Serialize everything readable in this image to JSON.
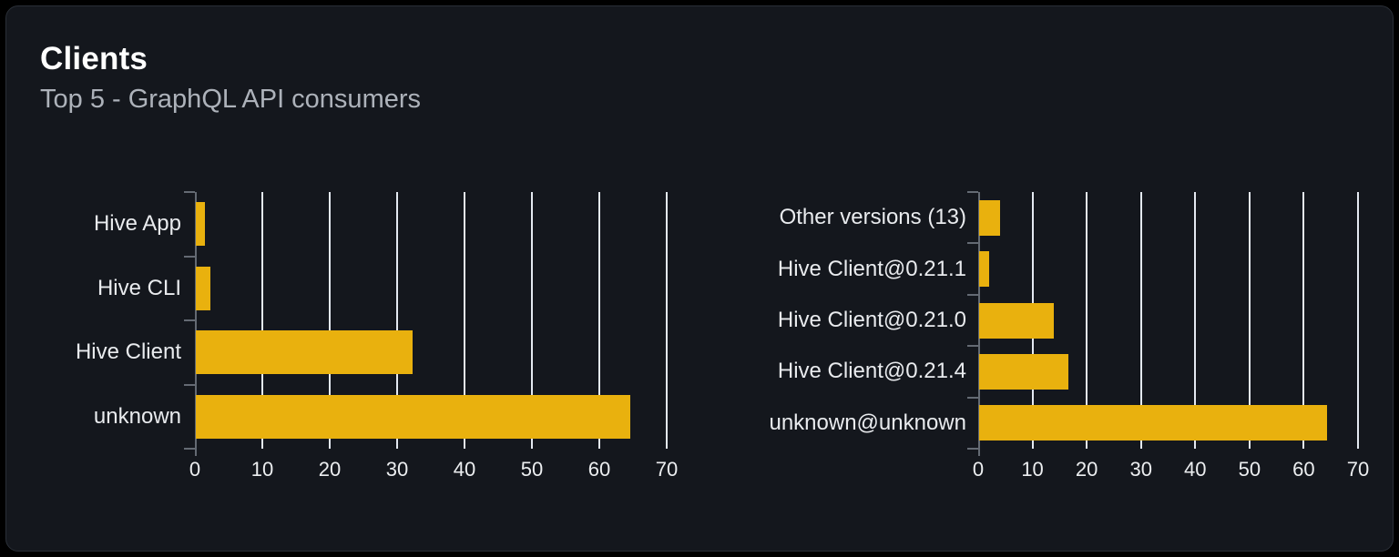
{
  "card": {
    "title": "Clients",
    "subtitle": "Top 5 - GraphQL API consumers"
  },
  "colors": {
    "page_bg": "#000000",
    "card_bg": "#14171d",
    "card_border": "#2a2f37",
    "title": "#ffffff",
    "subtitle": "#adb2ba",
    "category_label": "#e9ebee",
    "axis_label": "#eceef0",
    "bar": "#e9b10e",
    "gridline": "#e4e9f1",
    "axis_line": "#646a73"
  },
  "chart_data": [
    {
      "type": "bar",
      "orientation": "horizontal",
      "categories": [
        "Hive App",
        "Hive CLI",
        "Hive Client",
        "unknown"
      ],
      "values": [
        1.3,
        2.1,
        32.2,
        64.4
      ],
      "xlabel": "",
      "ylabel": "",
      "xlim": [
        0,
        70
      ],
      "xticks": [
        0,
        10,
        20,
        30,
        40,
        50,
        60,
        70
      ],
      "grid": true,
      "legend": false
    },
    {
      "type": "bar",
      "orientation": "horizontal",
      "categories": [
        "Other versions (13)",
        "Hive Client@0.21.1",
        "Hive Client@0.21.0",
        "Hive Client@0.21.4",
        "unknown@unknown"
      ],
      "values": [
        3.9,
        1.8,
        13.7,
        16.4,
        64.2
      ],
      "xlabel": "",
      "ylabel": "",
      "xlim": [
        0,
        70
      ],
      "xticks": [
        0,
        10,
        20,
        30,
        40,
        50,
        60,
        70
      ],
      "grid": true,
      "legend": false
    }
  ]
}
